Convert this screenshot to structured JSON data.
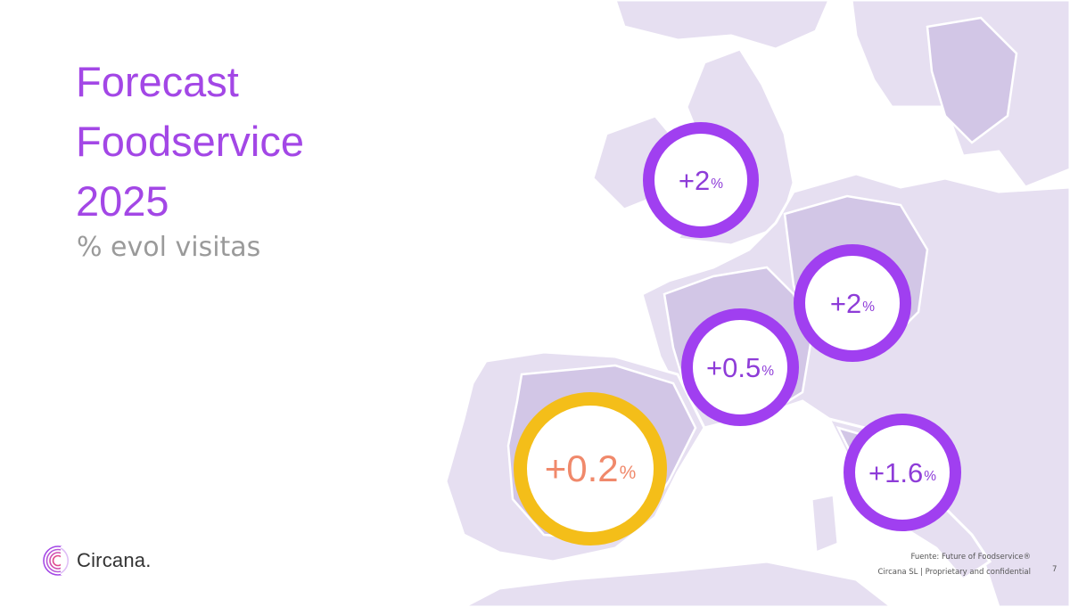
{
  "title": {
    "line1": "Forecast",
    "line2": "Foodservice",
    "line3": "2025"
  },
  "subtitle": "% evol visitas",
  "badges": {
    "uk": {
      "value": "+2",
      "unit": "%"
    },
    "de": {
      "value": "+2",
      "unit": "%"
    },
    "fr": {
      "value": "+0.5",
      "unit": "%"
    },
    "es": {
      "value": "+0.2",
      "unit": "%"
    },
    "it": {
      "value": "+1.6",
      "unit": "%"
    }
  },
  "logo": {
    "text": "Circana."
  },
  "footer": {
    "source": "Fuente: Future of Foodservice®",
    "company": "Circana SL  |  Proprietary and confidential",
    "page": "7"
  },
  "colors": {
    "title": "#a347e6",
    "ring_purple": "#a03ff0",
    "ring_gold": "#f4be19",
    "map_land": "#ddd3ec",
    "map_land_dark": "#c9bce0"
  }
}
